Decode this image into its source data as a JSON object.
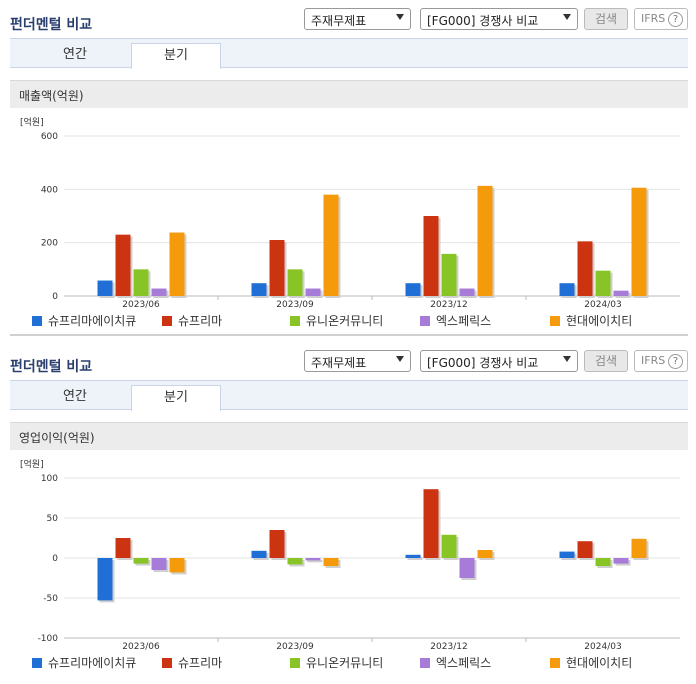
{
  "panels": [
    {
      "title": "펀더멘털 비교",
      "select1": "주재무제표",
      "select2": "[FG000] 경쟁사 비교",
      "search_label": "검색",
      "ifrs_label": "IFRS",
      "help_glyph": "?",
      "tabs": [
        "연간",
        "분기"
      ],
      "active_tab": 1,
      "subhead": "매출액(억원)"
    },
    {
      "title": "펀더멘털 비교",
      "select1": "주재무제표",
      "select2": "[FG000] 경쟁사 비교",
      "search_label": "검색",
      "ifrs_label": "IFRS",
      "help_glyph": "?",
      "tabs": [
        "연간",
        "분기"
      ],
      "active_tab": 1,
      "subhead": "영업이익(억원)"
    }
  ],
  "chart_data": [
    {
      "type": "bar",
      "unit_label": "[억원]",
      "categories": [
        "2023/06",
        "2023/09",
        "2023/12",
        "2024/03"
      ],
      "ylim": [
        0,
        600
      ],
      "yticks": [
        0,
        200,
        400,
        600
      ],
      "grid": true,
      "legend_position": "bottom",
      "series": [
        {
          "name": "슈프리마에이치큐",
          "color": "#1f6fd6",
          "values": [
            58,
            48,
            48,
            48
          ]
        },
        {
          "name": "슈프리마",
          "color": "#cc3311",
          "values": [
            230,
            210,
            300,
            205
          ]
        },
        {
          "name": "유니온커뮤니티",
          "color": "#88c425",
          "values": [
            100,
            100,
            158,
            95
          ]
        },
        {
          "name": "엑스페릭스",
          "color": "#a67cd8",
          "values": [
            28,
            28,
            28,
            20
          ]
        },
        {
          "name": "현대에이치티",
          "color": "#f59a0b",
          "values": [
            238,
            380,
            413,
            406
          ]
        }
      ]
    },
    {
      "type": "bar",
      "unit_label": "[억원]",
      "categories": [
        "2023/06",
        "2023/09",
        "2023/12",
        "2024/03"
      ],
      "ylim": [
        -100,
        100
      ],
      "yticks": [
        -100,
        -50,
        0,
        50,
        100
      ],
      "grid": true,
      "legend_position": "bottom",
      "series": [
        {
          "name": "슈프리마에이치큐",
          "color": "#1f6fd6",
          "values": [
            -53,
            9,
            4,
            8
          ]
        },
        {
          "name": "슈프리마",
          "color": "#cc3311",
          "values": [
            25,
            35,
            86,
            21
          ]
        },
        {
          "name": "유니온커뮤니티",
          "color": "#88c425",
          "values": [
            -7,
            -8,
            29,
            -10
          ]
        },
        {
          "name": "엑스페릭스",
          "color": "#a67cd8",
          "values": [
            -15,
            -3,
            -25,
            -7
          ]
        },
        {
          "name": "현대에이치티",
          "color": "#f59a0b",
          "values": [
            -18,
            -10,
            10,
            24
          ]
        }
      ]
    }
  ]
}
